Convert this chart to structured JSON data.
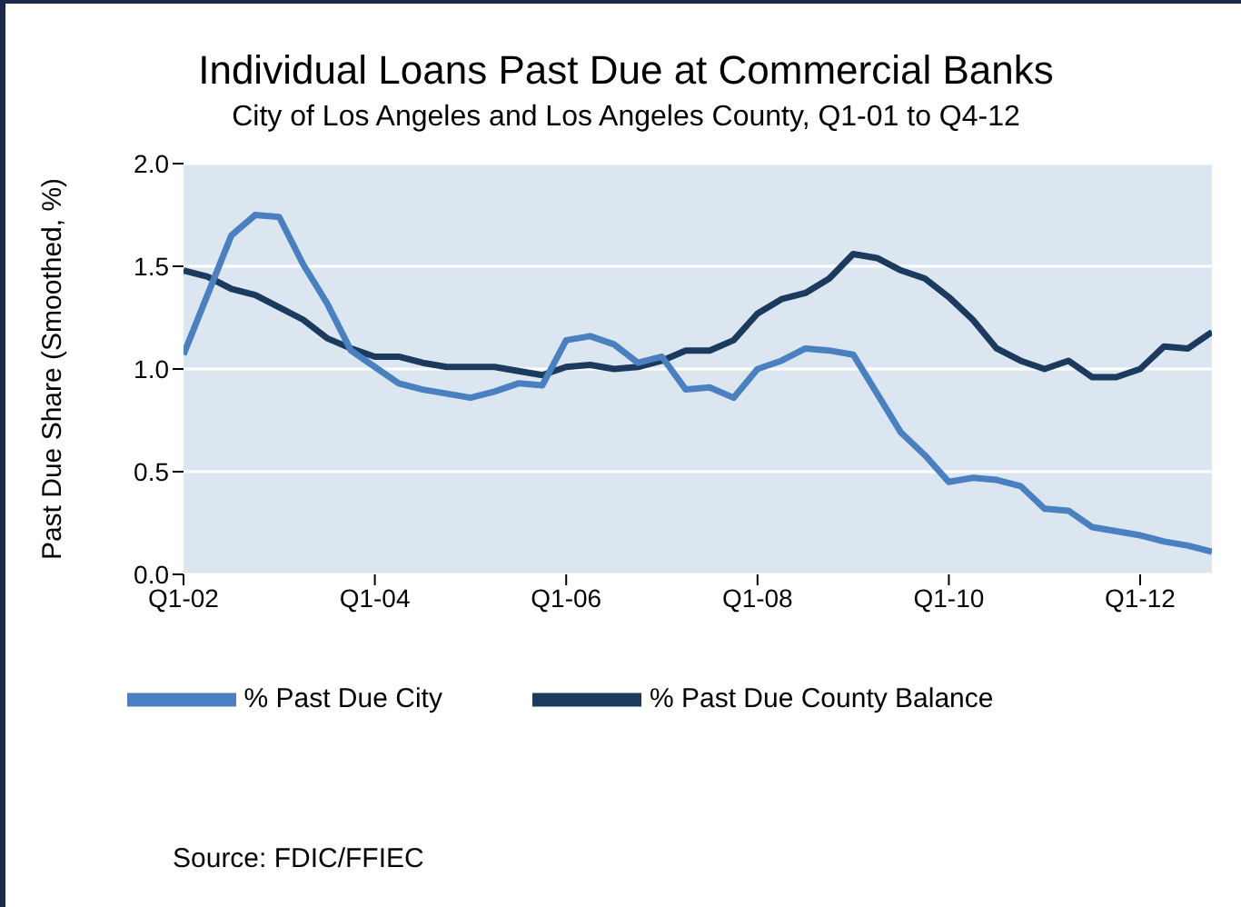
{
  "chart_data": {
    "type": "line",
    "title": "Individual Loans Past Due at Commercial Banks",
    "subtitle": "City of Los Angeles and Los Angeles County, Q1-01 to Q4-12",
    "ylabel": "Past Due Share (Smoothed, %)",
    "categories": [
      "Q1-02",
      null,
      null,
      null,
      null,
      null,
      null,
      null,
      "Q1-04",
      null,
      null,
      null,
      null,
      null,
      null,
      null,
      "Q1-06",
      null,
      null,
      null,
      null,
      null,
      null,
      null,
      "Q1-08",
      null,
      null,
      null,
      null,
      null,
      null,
      null,
      "Q1-10",
      null,
      null,
      null,
      null,
      null,
      null,
      null,
      "Q1-12",
      null,
      null,
      null
    ],
    "series": [
      {
        "name": "% Past Due County Balance",
        "color": "#1b3a5e",
        "values": [
          1.48,
          1.45,
          1.39,
          1.36,
          1.3,
          1.24,
          1.15,
          1.1,
          1.06,
          1.06,
          1.03,
          1.01,
          1.01,
          1.01,
          0.99,
          0.97,
          1.01,
          1.02,
          1.0,
          1.01,
          1.04,
          1.09,
          1.09,
          1.14,
          1.27,
          1.34,
          1.37,
          1.44,
          1.56,
          1.54,
          1.48,
          1.44,
          1.35,
          1.24,
          1.1,
          1.04,
          1.0,
          1.04,
          0.96,
          0.96,
          1.0,
          1.11,
          1.1,
          1.18
        ]
      },
      {
        "name": "% Past Due City",
        "color": "#4a80bf",
        "values": [
          1.07,
          1.36,
          1.65,
          1.75,
          1.74,
          1.51,
          1.32,
          1.09,
          1.01,
          0.93,
          0.9,
          0.88,
          0.86,
          0.89,
          0.93,
          0.92,
          1.14,
          1.16,
          1.12,
          1.03,
          1.06,
          0.9,
          0.91,
          0.86,
          1.0,
          1.04,
          1.1,
          1.09,
          1.07,
          0.88,
          0.69,
          0.58,
          0.45,
          0.47,
          0.46,
          0.43,
          0.32,
          0.31,
          0.23,
          0.21,
          0.19,
          0.16,
          0.14,
          0.11
        ]
      }
    ],
    "ylim": [
      0,
      2
    ],
    "yticks": [
      {
        "value": 0,
        "label": "0.0"
      },
      {
        "value": 0.5,
        "label": "0.5"
      },
      {
        "value": 1,
        "label": "1.0"
      },
      {
        "value": 1.5,
        "label": "1.5"
      },
      {
        "value": 2,
        "label": "2.0"
      }
    ],
    "grid": "y",
    "legend": "bottom",
    "marker": "none",
    "line_style": "solid",
    "annotations": [
      "Source: FDIC/FFIEC"
    ]
  }
}
